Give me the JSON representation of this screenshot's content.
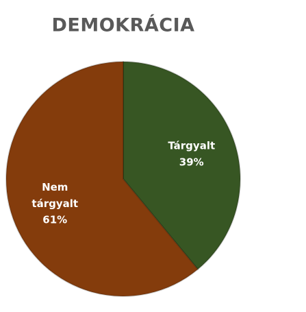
{
  "chart_data": {
    "type": "pie",
    "title": "DEMOKRÁCIA",
    "categories": [
      "Tárgyalt",
      "Nem tárgyalt"
    ],
    "values": [
      39,
      61
    ],
    "value_labels": [
      "39%",
      "61%"
    ],
    "colors": [
      "#375623",
      "#843c0c"
    ]
  }
}
